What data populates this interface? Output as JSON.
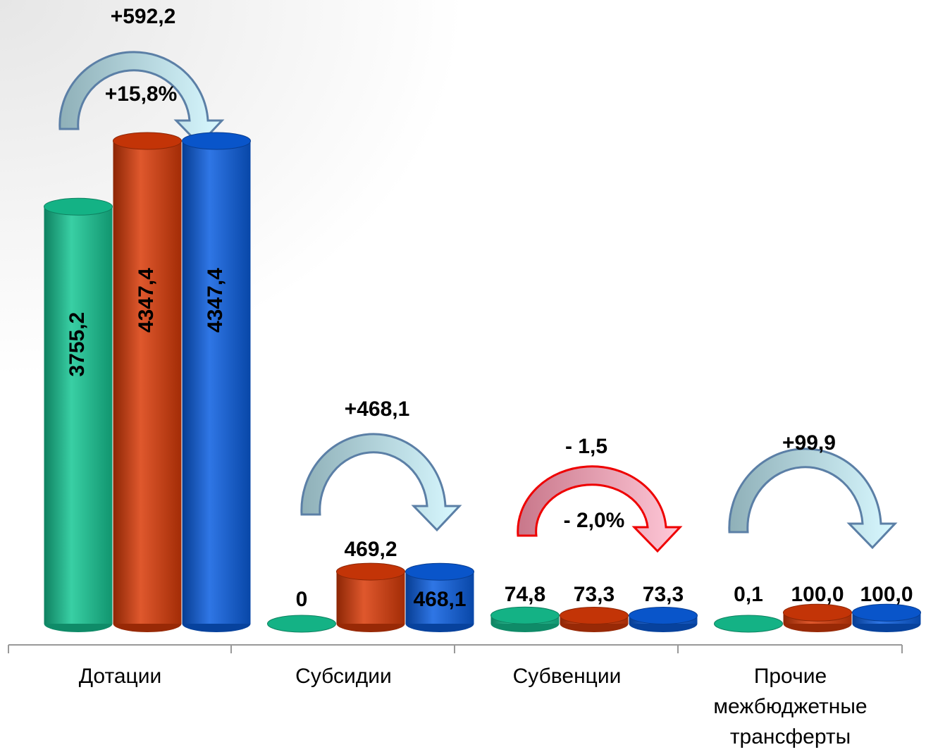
{
  "chart_data": {
    "type": "bar",
    "categories": [
      "Дотации",
      "Субсидии",
      "Субвенции",
      "Прочие межбюджетные трансферты"
    ],
    "series": [
      {
        "color": "#16c694",
        "values": [
          3755.2,
          0,
          74.8,
          0.1
        ],
        "value_labels": [
          "3755,2",
          "0",
          "74,8",
          "0,1"
        ]
      },
      {
        "color": "#d93a08",
        "values": [
          4347.4,
          469.2,
          73.3,
          100.0
        ],
        "value_labels": [
          "4347,4",
          "469,2",
          "73,3",
          "100,0"
        ]
      },
      {
        "color": "#0a5ee0",
        "values": [
          4347.4,
          468.1,
          73.3,
          100.0
        ],
        "value_labels": [
          "4347,4",
          "468,1",
          "73,3",
          "100,0"
        ]
      }
    ],
    "annotations": [
      "+592,2",
      "+15,8%",
      "+468,1",
      "- 1,5",
      "- 2,0%",
      "+99,9"
    ]
  }
}
